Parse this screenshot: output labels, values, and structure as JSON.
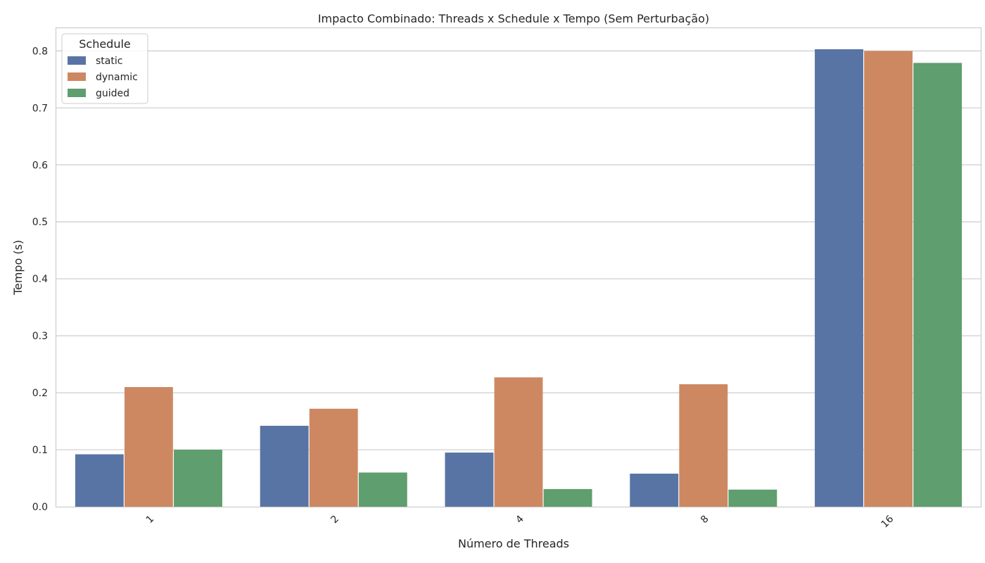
{
  "chart_data": {
    "type": "bar",
    "title": "Impacto Combinado: Threads x Schedule x Tempo (Sem Perturbação)",
    "xlabel": "Número de Threads",
    "ylabel": "Tempo (s)",
    "categories": [
      "1",
      "2",
      "4",
      "8",
      "16"
    ],
    "ylim": [
      0,
      0.84
    ],
    "yticks": [
      "0.0",
      "0.1",
      "0.2",
      "0.3",
      "0.4",
      "0.5",
      "0.6",
      "0.7",
      "0.8"
    ],
    "grid": true,
    "legend": {
      "title": "Schedule",
      "placement": "top-left"
    },
    "series": [
      {
        "name": "static",
        "color": "#5874a4",
        "values": [
          0.092,
          0.142,
          0.095,
          0.058,
          0.803
        ]
      },
      {
        "name": "dynamic",
        "color": "#cd8862",
        "values": [
          0.21,
          0.172,
          0.227,
          0.215,
          0.8
        ]
      },
      {
        "name": "guided",
        "color": "#5f9e6e",
        "values": [
          0.1,
          0.06,
          0.031,
          0.03,
          0.779
        ]
      }
    ]
  }
}
